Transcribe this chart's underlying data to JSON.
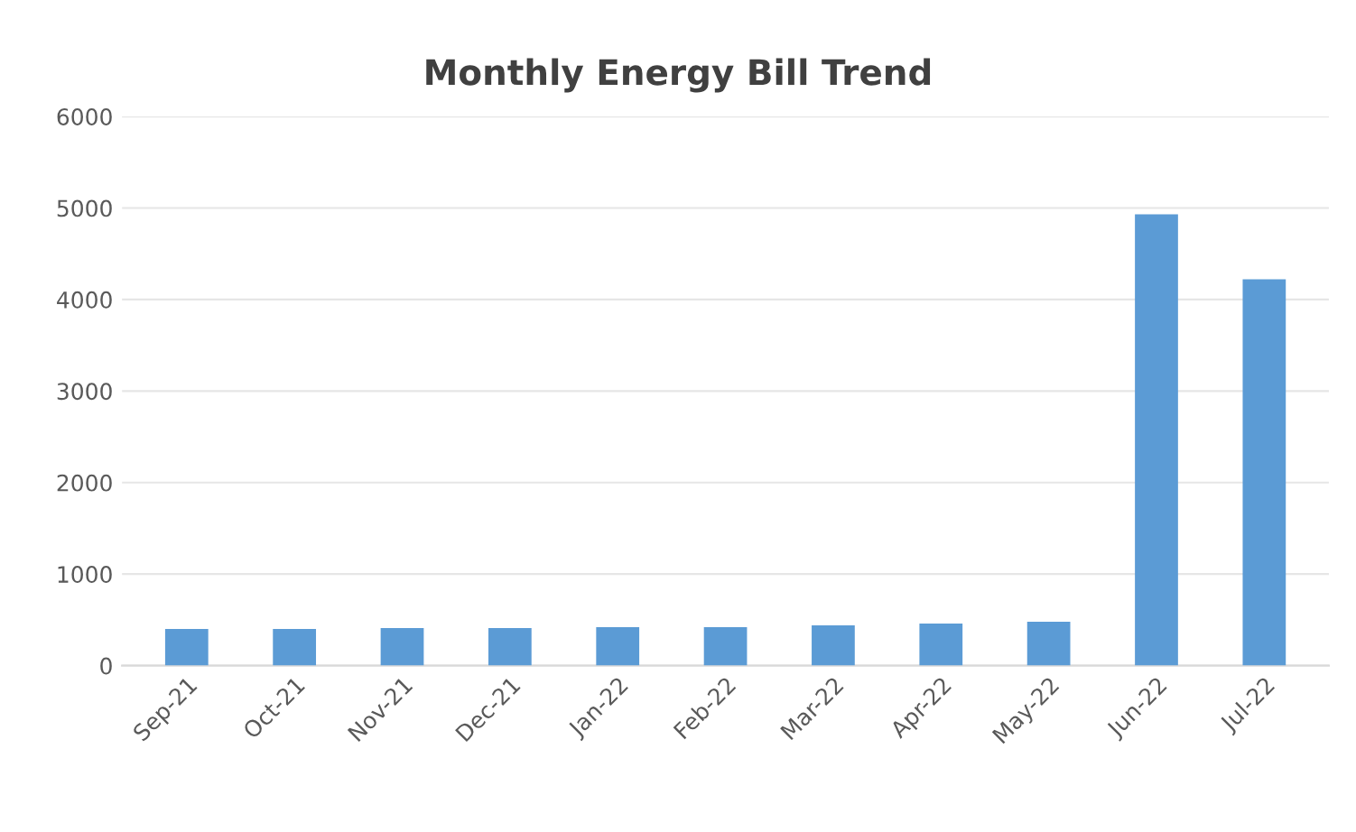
{
  "chart_data": {
    "type": "bar",
    "title": "Monthly Energy Bill Trend",
    "categories": [
      "Sep-21",
      "Oct-21",
      "Nov-21",
      "Dec-21",
      "Jan-22",
      "Feb-22",
      "Mar-22",
      "Apr-22",
      "May-22",
      "Jun-22",
      "Jul-22"
    ],
    "values": [
      400,
      400,
      410,
      410,
      420,
      420,
      440,
      460,
      480,
      4930,
      4220
    ],
    "color": "#5b9bd5",
    "ylim": [
      0,
      6000
    ],
    "yticks": [
      0,
      1000,
      2000,
      3000,
      4000,
      5000,
      6000
    ],
    "grid": "y"
  }
}
